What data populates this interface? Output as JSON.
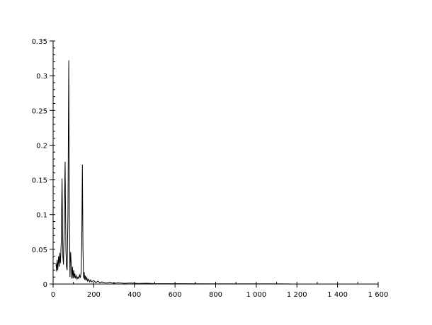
{
  "chart_data": {
    "type": "line",
    "title": "",
    "xlabel": "",
    "ylabel": "",
    "xlim": [
      0,
      1600
    ],
    "ylim": [
      0,
      0.35
    ],
    "grid": false,
    "line_color": "#000000",
    "x_ticks": [
      0,
      200,
      400,
      600,
      800,
      1000,
      1200,
      1400,
      1600
    ],
    "x_tick_labels": [
      "0",
      "200",
      "400",
      "600",
      "800",
      "1 000",
      "1 200",
      "1 400",
      "1 600"
    ],
    "x_minor_step": 100,
    "y_ticks": [
      0,
      0.05,
      0.1,
      0.15,
      0.2,
      0.25,
      0.3,
      0.35
    ],
    "y_tick_labels": [
      "0",
      "0.05",
      "0.1",
      "0.15",
      "0.2",
      "0.25",
      "0.3",
      "0.35"
    ],
    "y_minor_step": 0.01,
    "series": [
      {
        "points": [
          [
            14,
            0.03
          ],
          [
            17,
            0.018
          ],
          [
            20,
            0.035
          ],
          [
            23,
            0.02
          ],
          [
            27,
            0.04
          ],
          [
            30,
            0.025
          ],
          [
            33,
            0.045
          ],
          [
            36,
            0.03
          ],
          [
            40,
            0.06
          ],
          [
            44,
            0.152
          ],
          [
            48,
            0.04
          ],
          [
            51,
            0.028
          ],
          [
            55,
            0.09
          ],
          [
            59,
            0.176
          ],
          [
            63,
            0.05
          ],
          [
            66,
            0.025
          ],
          [
            69,
            0.02
          ],
          [
            73,
            0.1
          ],
          [
            77,
            0.322
          ],
          [
            80,
            0.1
          ],
          [
            83,
            0.01
          ],
          [
            86,
            0.046
          ],
          [
            89,
            0.03
          ],
          [
            92,
            0.008
          ],
          [
            95,
            0.025
          ],
          [
            98,
            0.008
          ],
          [
            101,
            0.02
          ],
          [
            104,
            0.009
          ],
          [
            107,
            0.015
          ],
          [
            110,
            0.008
          ],
          [
            114,
            0.012
          ],
          [
            118,
            0.007
          ],
          [
            122,
            0.01
          ],
          [
            126,
            0.008
          ],
          [
            130,
            0.013
          ],
          [
            134,
            0.009
          ],
          [
            138,
            0.017
          ],
          [
            141,
            0.06
          ],
          [
            144,
            0.172
          ],
          [
            147,
            0.05
          ],
          [
            150,
            0.008
          ],
          [
            153,
            0.017
          ],
          [
            156,
            0.006
          ],
          [
            159,
            0.012
          ],
          [
            162,
            0.005
          ],
          [
            166,
            0.009
          ],
          [
            170,
            0.004
          ],
          [
            175,
            0.007
          ],
          [
            180,
            0.003
          ],
          [
            185,
            0.006
          ],
          [
            190,
            0.003
          ],
          [
            200,
            0.005
          ],
          [
            210,
            0.002
          ],
          [
            220,
            0.004
          ],
          [
            230,
            0.002
          ],
          [
            240,
            0.003
          ],
          [
            260,
            0.0015
          ],
          [
            280,
            0.0025
          ],
          [
            300,
            0.001
          ],
          [
            320,
            0.002
          ],
          [
            350,
            0.001
          ],
          [
            380,
            0.0015
          ],
          [
            420,
            0.0008
          ],
          [
            460,
            0.0012
          ],
          [
            500,
            0.0005
          ],
          [
            600,
            0.0005
          ],
          [
            700,
            0.0004
          ],
          [
            800,
            0.0003
          ],
          [
            900,
            0.0003
          ],
          [
            1000,
            0.0002
          ],
          [
            1100,
            0.0002
          ],
          [
            1170,
            0.0001
          ]
        ]
      }
    ]
  }
}
